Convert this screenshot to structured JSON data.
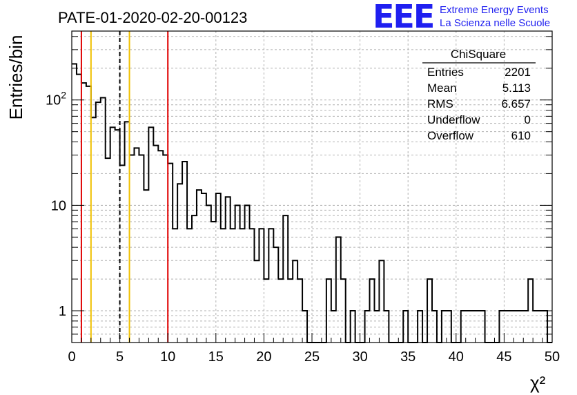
{
  "colors": {
    "histogram": "#000000",
    "grid": "#b0b0b0",
    "red_line": "#e00000",
    "yellow_line": "#f0c000",
    "dashed_line": "#000000",
    "logo": "#1f1ff0"
  },
  "header": {
    "title": "PATE-01-2020-02-20-00123",
    "logo_text": "EEE",
    "logo_line1": "Extreme Energy Events",
    "logo_line2": "La Scienza nelle Scuole"
  },
  "stats": {
    "title": "ChiSquare",
    "rows": [
      {
        "label": "Entries",
        "value": "2201"
      },
      {
        "label": "Mean",
        "value": "5.113"
      },
      {
        "label": "RMS",
        "value": "6.657"
      },
      {
        "label": "Underflow",
        "value": "0"
      },
      {
        "label": "Overflow",
        "value": "610"
      }
    ]
  },
  "chart_data": {
    "type": "histogram",
    "xlabel": "χ²",
    "ylabel": "Entries/bin",
    "x_range": [
      0,
      50
    ],
    "y_range": [
      0.5,
      450
    ],
    "y_scale": "log",
    "grid": true,
    "bin_width": 0.5,
    "xticks": [
      0,
      5,
      10,
      15,
      20,
      25,
      30,
      35,
      40,
      45,
      50
    ],
    "yticks": [
      {
        "value": 1,
        "label": "1"
      },
      {
        "value": 10,
        "label": "10"
      },
      {
        "value": 100,
        "label": "10",
        "sup": "2"
      }
    ],
    "counts": [
      220,
      175,
      145,
      135,
      68,
      95,
      105,
      28,
      55,
      52,
      24,
      62,
      30,
      35,
      30,
      14,
      55,
      37,
      33,
      30,
      25,
      6,
      16,
      26,
      6,
      8,
      14,
      13,
      10,
      7,
      13,
      6,
      12,
      6,
      10,
      6,
      10,
      6,
      3,
      6,
      2,
      6,
      4,
      2,
      8,
      2,
      3,
      2,
      1,
      0.5,
      0.5,
      0.5,
      0.5,
      2,
      1,
      5,
      2,
      0.5,
      1,
      0.5,
      0.5,
      1,
      2,
      1,
      3,
      1,
      0.5,
      0.5,
      0.5,
      1,
      0.5,
      0.5,
      1,
      0.5,
      2,
      1,
      0.5,
      1,
      1,
      0.5,
      0.5,
      1,
      1,
      1,
      1,
      1,
      0.5,
      0.5,
      0.5,
      1,
      1,
      1,
      1,
      1,
      1,
      2,
      1,
      1,
      1,
      0.5
    ],
    "vertical_lines": [
      {
        "x": 1,
        "color": "red",
        "style": "solid"
      },
      {
        "x": 2,
        "color": "yellow",
        "style": "solid"
      },
      {
        "x": 5,
        "color": "black",
        "style": "dashed"
      },
      {
        "x": 6,
        "color": "yellow",
        "style": "solid"
      },
      {
        "x": 10,
        "color": "red",
        "style": "solid"
      }
    ]
  }
}
